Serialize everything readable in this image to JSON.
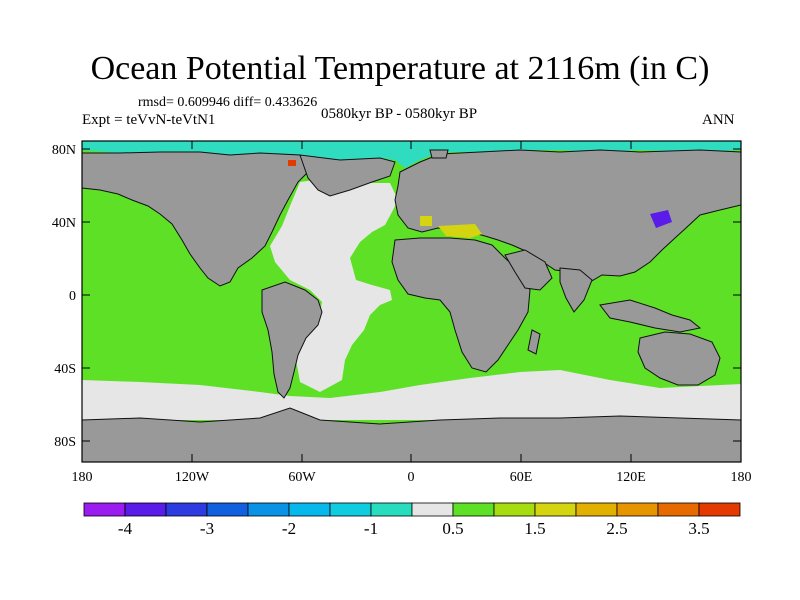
{
  "title": "Ocean Potential Temperature at 2116m (in C)",
  "stats": "rmsd= 0.609946 diff= 0.433626",
  "expt": "Expt = teVvN-teVtN1",
  "period": "0580kyr BP - 0580kyr BP",
  "season": "ANN",
  "colors": {
    "land": "#999999",
    "ocean_green": "#5ee026",
    "ocean_white": "#e6e6e6",
    "arctic_cyan": "#30dcc0"
  },
  "chart_data": {
    "type": "heatmap",
    "title": "Ocean Potential Temperature at 2116m (in C)",
    "lat_ticks": [
      "80N",
      "40N",
      "0",
      "40S",
      "80S"
    ],
    "lon_ticks": [
      "180",
      "120W",
      "60W",
      "0",
      "60E",
      "120E",
      "180"
    ],
    "colorbar": {
      "colors": [
        "#9a1cf0",
        "#5a1ce8",
        "#2c3ce0",
        "#1060e0",
        "#0a92e6",
        "#06b8ec",
        "#10cce0",
        "#28dcbe",
        "#e6e6e6",
        "#5ee026",
        "#a6dc10",
        "#d4d410",
        "#e2b000",
        "#e69400",
        "#e66a00",
        "#e23a00"
      ],
      "labels": [
        "-4",
        "-3",
        "-2",
        "-1",
        "0.5",
        "1.5",
        "2.5",
        "3.5"
      ]
    }
  }
}
